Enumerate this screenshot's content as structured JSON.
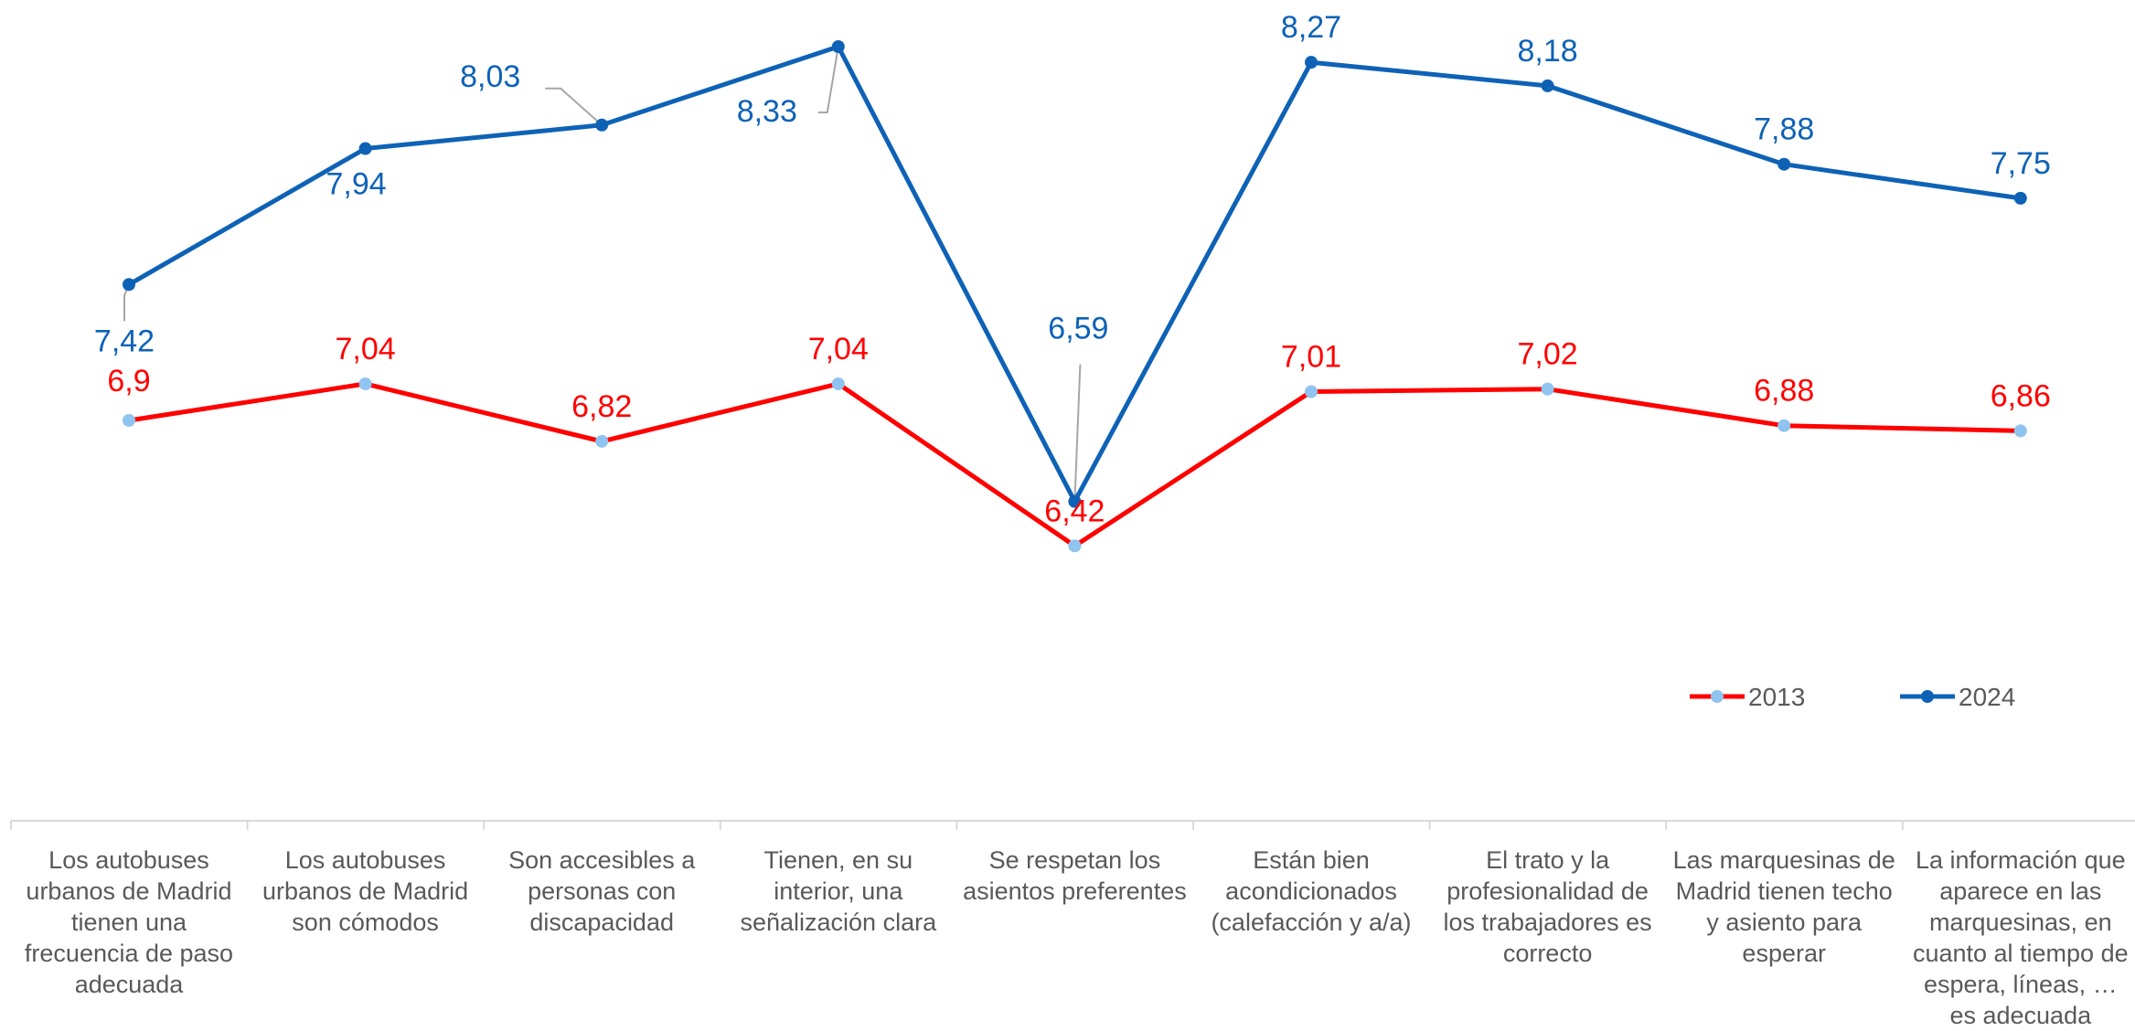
{
  "chart_data": {
    "type": "line",
    "title": "",
    "xlabel": "",
    "ylabel": "",
    "categories": [
      [
        "Los autobuses",
        "urbanos de Madrid",
        "tienen una",
        "frecuencia de paso",
        "adecuada"
      ],
      [
        "Los autobuses",
        "urbanos de Madrid",
        "son cómodos"
      ],
      [
        "Son accesibles a",
        "personas con",
        "discapacidad"
      ],
      [
        "Tienen, en su",
        "interior, una",
        "señalización clara"
      ],
      [
        "Se respetan los",
        "asientos preferentes"
      ],
      [
        "Están bien",
        "acondicionados",
        "(calefacción y a/a)"
      ],
      [
        "El trato y la",
        "profesionalidad de",
        "los trabajadores es",
        "correcto"
      ],
      [
        "Las marquesinas de",
        "Madrid tienen techo",
        "y asiento para",
        "esperar"
      ],
      [
        "La información que",
        "aparece en las",
        "marquesinas, en",
        "cuanto al tiempo de",
        "espera, líneas, …",
        "es adecuada"
      ]
    ],
    "series": [
      {
        "name": "2013",
        "values": [
          6.9,
          7.04,
          6.82,
          7.04,
          6.42,
          7.01,
          7.02,
          6.88,
          6.86
        ],
        "labels": [
          "6,9",
          "7,04",
          "6,82",
          "7,04",
          "6,42",
          "7,01",
          "7,02",
          "6,88",
          "6,86"
        ],
        "line_color": "#ff0000",
        "marker_color": "#8fc3f0",
        "label_color": "#ff0000"
      },
      {
        "name": "2024",
        "values": [
          7.42,
          7.94,
          8.03,
          8.33,
          6.59,
          8.27,
          8.18,
          7.88,
          7.75
        ],
        "labels": [
          "7,42",
          "7,94",
          "8,03",
          "8,33",
          "6,59",
          "8,27",
          "8,18",
          "7,88",
          "7,75"
        ],
        "line_color": "#0e62b6",
        "marker_color": "#0e62b6",
        "label_color": "#0e62b6"
      }
    ],
    "legend": {
      "position": "bottom-right",
      "entries": [
        "2013",
        "2024"
      ]
    },
    "grid": false,
    "leader_line_color": "#a6a6a6",
    "axis_color": "#d9d9d9"
  }
}
